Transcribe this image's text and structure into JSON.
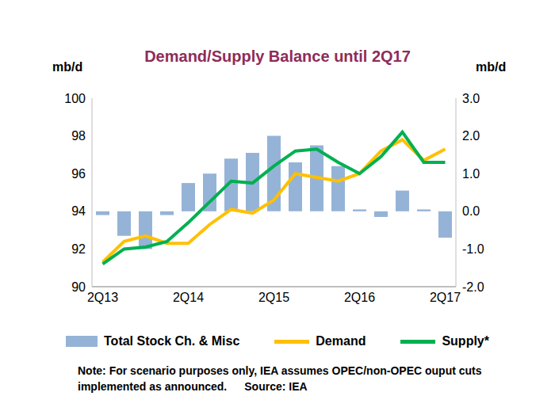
{
  "chart_data": {
    "type": "combo",
    "title": "Demand/Supply Balance until 2Q17",
    "y_label": "mb/d",
    "y2_label": "mb/d",
    "categories": [
      "2Q13",
      null,
      null,
      null,
      "2Q14",
      null,
      null,
      null,
      "2Q15",
      null,
      null,
      null,
      "2Q16",
      null,
      null,
      null,
      "2Q17"
    ],
    "series": [
      {
        "name": "Total Stock Ch. & Misc",
        "type": "bar",
        "axis": "y2",
        "color": "#95B3D7",
        "values": [
          -0.1,
          -0.65,
          -1.0,
          -0.1,
          0.75,
          1.0,
          1.4,
          1.55,
          2.0,
          1.3,
          1.75,
          1.2,
          0.05,
          -0.15,
          0.55,
          0.05,
          -0.7
        ]
      },
      {
        "name": "Demand",
        "type": "line",
        "color": "#FFC000",
        "values": [
          91.3,
          92.4,
          92.7,
          92.3,
          92.3,
          93.3,
          94.1,
          93.9,
          94.6,
          96.0,
          95.8,
          95.6,
          96.0,
          97.2,
          97.8,
          96.7,
          97.3
        ]
      },
      {
        "name": "Supply*",
        "type": "line",
        "color": "#00B050",
        "values": [
          91.2,
          92.0,
          92.1,
          92.4,
          93.4,
          94.5,
          95.6,
          95.5,
          96.4,
          97.2,
          97.3,
          96.6,
          96.0,
          96.9,
          98.2,
          96.6,
          96.6
        ]
      }
    ],
    "ylim": [
      90,
      100
    ],
    "yticks": [
      90,
      92,
      94,
      96,
      98,
      100
    ],
    "y2lim": [
      -2,
      3
    ],
    "y2ticks": [
      {
        "value": -2,
        "label": "-2.0"
      },
      {
        "value": -1,
        "label": "-1.0"
      },
      {
        "value": 0,
        "label": "0.0"
      },
      {
        "value": 1,
        "label": "1.0"
      },
      {
        "value": 2,
        "label": "2.0"
      },
      {
        "value": 3,
        "label": "3.0"
      }
    ],
    "grid": false,
    "legend": "bottom",
    "annotations": [
      "Note: For scenario purposes only, IEA assumes OPEC/non-OPEC ouput cuts implemented as announced.",
      "Source: IEA"
    ]
  }
}
